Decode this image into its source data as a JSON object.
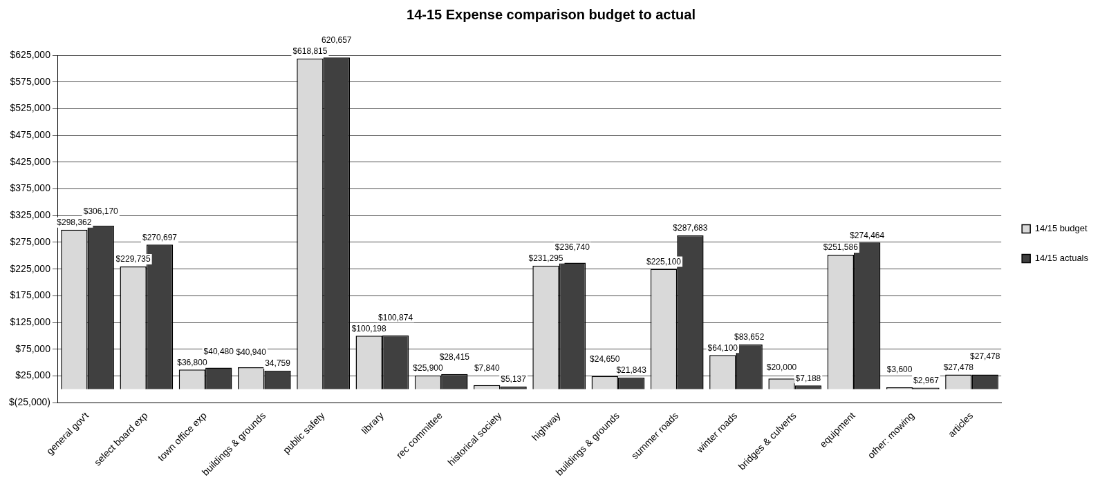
{
  "chart_data": {
    "type": "bar",
    "title": "14-15 Expense comparison budget to actual",
    "categories": [
      "general gov't",
      "select board exp",
      "town office exp",
      "buildings & grounds",
      "public safety",
      "library",
      "rec committee",
      "historical society",
      "highway",
      "buildings & grounds",
      "summer roads",
      "winter roads",
      "bridges & culverts",
      "equipment",
      "other: mowing",
      "articles"
    ],
    "series": [
      {
        "name": "14/15 budget",
        "color": "#d9d9d9",
        "values": [
          298362,
          229735,
          36800,
          40940,
          618815,
          100198,
          25900,
          7840,
          231295,
          24650,
          225100,
          64100,
          20000,
          251586,
          3600,
          27478
        ],
        "value_labels": [
          "$298,362",
          "$229,735",
          "$36,800",
          "$40,940",
          "$618,815",
          "$100,198",
          "$25,900",
          "$7,840",
          "$231,295",
          "$24,650",
          "$225,100",
          "$64,100",
          "$20,000",
          "$251,586",
          "$3,600",
          "$27,478"
        ]
      },
      {
        "name": "14/15 actuals",
        "color": "#404040",
        "values": [
          306170,
          270697,
          40480,
          34759,
          620657,
          100874,
          28415,
          5137,
          236740,
          21843,
          287683,
          83652,
          7188,
          274464,
          2967,
          27478
        ],
        "value_labels": [
          "$306,170",
          "$270,697",
          "$40,480",
          "34,759",
          "620,657",
          "$100,874",
          "$28,415",
          "$5,137",
          "$236,740",
          "$21,843",
          "$287,683",
          "$83,652",
          "$7,188",
          "$274,464",
          "$2,967",
          "$27,478"
        ]
      }
    ],
    "ylim": [
      -25000,
      625000
    ],
    "yticks": [
      {
        "value": -25000,
        "label": "$(25,000)"
      },
      {
        "value": 25000,
        "label": "$25,000"
      },
      {
        "value": 75000,
        "label": "$75,000"
      },
      {
        "value": 125000,
        "label": "$125,000"
      },
      {
        "value": 175000,
        "label": "$175,000"
      },
      {
        "value": 225000,
        "label": "$225,000"
      },
      {
        "value": 275000,
        "label": "$275,000"
      },
      {
        "value": 325000,
        "label": "$325,000"
      },
      {
        "value": 375000,
        "label": "$375,000"
      },
      {
        "value": 425000,
        "label": "$425,000"
      },
      {
        "value": 475000,
        "label": "$475,000"
      },
      {
        "value": 525000,
        "label": "$525,000"
      },
      {
        "value": 575000,
        "label": "$575,000"
      },
      {
        "value": 625000,
        "label": "$625,000"
      }
    ],
    "grid": "y",
    "legend": "right"
  }
}
